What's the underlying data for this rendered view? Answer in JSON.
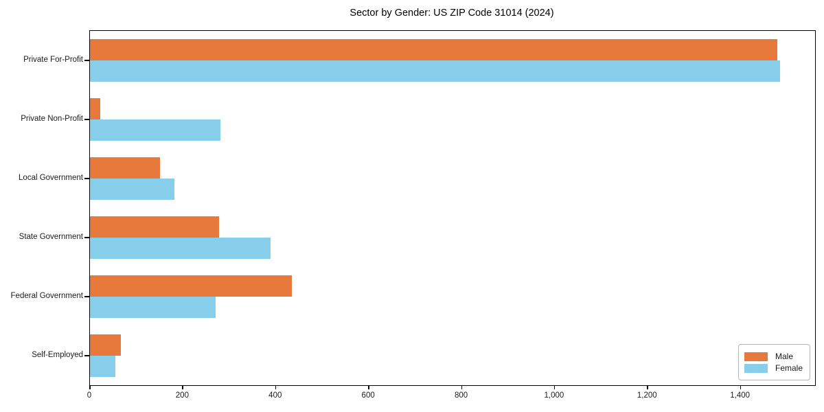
{
  "chart_data": {
    "type": "bar",
    "orientation": "horizontal",
    "title": "Sector by Gender: US ZIP Code 31014 (2024)",
    "categories": [
      "Private For-Profit",
      "Private Non-Profit",
      "Local Government",
      "State Government",
      "Federal Government",
      "Self-Employed"
    ],
    "series": [
      {
        "name": "Male",
        "color": "#e8793d",
        "values": [
          1479,
          22,
          151,
          277,
          434,
          67
        ]
      },
      {
        "name": "Female",
        "color": "#87ceeb",
        "values": [
          1485,
          280,
          181,
          389,
          270,
          54
        ]
      }
    ],
    "xlabel": "",
    "ylabel": "",
    "xlim": [
      0,
      1560
    ],
    "x_ticks": [
      0,
      200,
      400,
      600,
      800,
      1000,
      1200,
      1400
    ],
    "x_tick_labels": [
      "0",
      "200",
      "400",
      "600",
      "800",
      "1,000",
      "1,200",
      "1,400"
    ],
    "grid": false,
    "legend_position": "lower right"
  }
}
